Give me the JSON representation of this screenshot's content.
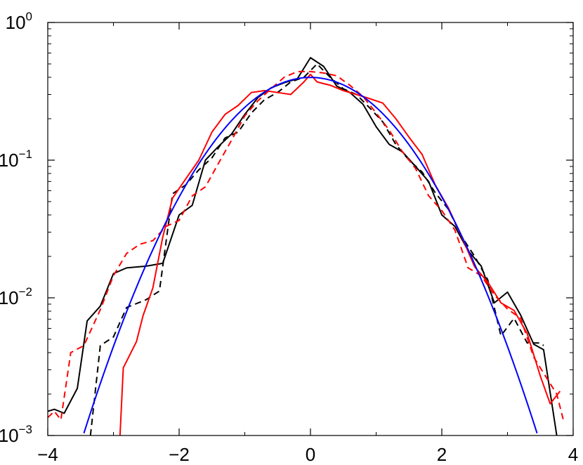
{
  "chart_data": {
    "type": "line",
    "title": "",
    "xlabel": "",
    "ylabel": "",
    "xlim": [
      -4,
      4
    ],
    "ylim": [
      0.001,
      1
    ],
    "yscale": "log",
    "grid": false,
    "x_ticks": [
      -4,
      -2,
      0,
      2,
      4
    ],
    "x_tick_labels": [
      "−4",
      "−2",
      "0",
      "2",
      "4"
    ],
    "y_ticks": [
      {
        "value": 1,
        "base": "10",
        "exp": "0"
      },
      {
        "value": 0.1,
        "base": "10",
        "exp": "−1"
      },
      {
        "value": 0.01,
        "base": "10",
        "exp": "−2"
      },
      {
        "value": 0.001,
        "base": "10",
        "exp": "−3"
      }
    ],
    "series": [
      {
        "color": "#000000",
        "dash": "solid",
        "points": [
          [
            -4.0,
            0.0015
          ],
          [
            -3.9,
            0.00155
          ],
          [
            -3.75,
            0.00145
          ],
          [
            -3.55,
            0.0022
          ],
          [
            -3.4,
            0.0068
          ],
          [
            -3.2,
            0.0087
          ],
          [
            -3.0,
            0.015
          ],
          [
            -2.8,
            0.0165
          ],
          [
            -2.5,
            0.017
          ],
          [
            -2.25,
            0.0178
          ],
          [
            -2.0,
            0.04
          ],
          [
            -1.8,
            0.047
          ],
          [
            -1.6,
            0.1
          ],
          [
            -1.4,
            0.126
          ],
          [
            -1.2,
            0.155
          ],
          [
            -1.0,
            0.215
          ],
          [
            -0.8,
            0.285
          ],
          [
            -0.6,
            0.335
          ],
          [
            -0.4,
            0.365
          ],
          [
            -0.2,
            0.39
          ],
          [
            0.0,
            0.555
          ],
          [
            0.2,
            0.48
          ],
          [
            0.4,
            0.345
          ],
          [
            0.6,
            0.31
          ],
          [
            0.8,
            0.255
          ],
          [
            1.0,
            0.175
          ],
          [
            1.2,
            0.13
          ],
          [
            1.4,
            0.115
          ],
          [
            1.6,
            0.09
          ],
          [
            1.8,
            0.07
          ],
          [
            2.0,
            0.04
          ],
          [
            2.2,
            0.033
          ],
          [
            2.4,
            0.022
          ],
          [
            2.6,
            0.017
          ],
          [
            2.8,
            0.0092
          ],
          [
            3.0,
            0.011
          ],
          [
            3.2,
            0.0075
          ],
          [
            3.4,
            0.0046
          ],
          [
            3.55,
            0.0042
          ],
          [
            3.75,
            0.001
          ]
        ]
      },
      {
        "color": "#000000",
        "dash": "dashed",
        "points": [
          [
            -3.35,
            0.001
          ],
          [
            -3.2,
            0.0045
          ],
          [
            -3.0,
            0.0052
          ],
          [
            -2.8,
            0.0085
          ],
          [
            -2.5,
            0.0097
          ],
          [
            -2.3,
            0.0112
          ],
          [
            -2.1,
            0.057
          ],
          [
            -1.9,
            0.066
          ],
          [
            -1.7,
            0.085
          ],
          [
            -1.5,
            0.104
          ],
          [
            -1.3,
            0.145
          ],
          [
            -1.1,
            0.16
          ],
          [
            -0.9,
            0.22
          ],
          [
            -0.7,
            0.275
          ],
          [
            -0.5,
            0.31
          ],
          [
            -0.3,
            0.37
          ],
          [
            -0.1,
            0.4
          ],
          [
            0.1,
            0.5
          ],
          [
            0.3,
            0.4
          ],
          [
            0.5,
            0.33
          ],
          [
            0.7,
            0.3
          ],
          [
            0.9,
            0.24
          ],
          [
            1.1,
            0.19
          ],
          [
            1.3,
            0.13
          ],
          [
            1.5,
            0.1
          ],
          [
            1.7,
            0.082
          ],
          [
            1.9,
            0.058
          ],
          [
            2.1,
            0.044
          ],
          [
            2.3,
            0.028
          ],
          [
            2.5,
            0.02
          ],
          [
            2.7,
            0.0135
          ],
          [
            2.9,
            0.0053
          ],
          [
            3.1,
            0.0071
          ],
          [
            3.3,
            0.0047
          ],
          [
            3.5,
            0.0047
          ],
          [
            3.55,
            0.0045
          ]
        ]
      },
      {
        "color": "#ff0000",
        "dash": "solid",
        "points": [
          [
            -2.9,
            0.001
          ],
          [
            -2.85,
            0.0031
          ],
          [
            -2.65,
            0.0048
          ],
          [
            -2.55,
            0.0074
          ],
          [
            -2.4,
            0.0118
          ],
          [
            -2.25,
            0.0275
          ],
          [
            -2.1,
            0.053
          ],
          [
            -1.9,
            0.073
          ],
          [
            -1.7,
            0.1
          ],
          [
            -1.5,
            0.16
          ],
          [
            -1.3,
            0.215
          ],
          [
            -1.1,
            0.25
          ],
          [
            -0.9,
            0.31
          ],
          [
            -0.7,
            0.32
          ],
          [
            -0.5,
            0.31
          ],
          [
            -0.3,
            0.3
          ],
          [
            -0.1,
            0.37
          ],
          [
            0.0,
            0.42
          ],
          [
            0.1,
            0.37
          ],
          [
            0.3,
            0.35
          ],
          [
            0.5,
            0.32
          ],
          [
            0.7,
            0.3
          ],
          [
            0.9,
            0.28
          ],
          [
            1.1,
            0.26
          ],
          [
            1.3,
            0.2
          ],
          [
            1.5,
            0.147
          ],
          [
            1.7,
            0.11
          ],
          [
            1.9,
            0.066
          ],
          [
            2.1,
            0.045
          ],
          [
            2.3,
            0.028
          ],
          [
            2.5,
            0.0168
          ],
          [
            2.7,
            0.013
          ],
          [
            2.9,
            0.0092
          ],
          [
            3.1,
            0.0081
          ],
          [
            3.3,
            0.0055
          ],
          [
            3.5,
            0.0027
          ],
          [
            3.65,
            0.0017
          ],
          [
            3.8,
            0.0021
          ]
        ]
      },
      {
        "color": "#ff0000",
        "dash": "dashed",
        "points": [
          [
            -4.0,
            0.00135
          ],
          [
            -3.9,
            0.0015
          ],
          [
            -3.8,
            0.0013
          ],
          [
            -3.65,
            0.004
          ],
          [
            -3.45,
            0.0045
          ],
          [
            -3.2,
            0.0082
          ],
          [
            -3.0,
            0.0145
          ],
          [
            -2.8,
            0.021
          ],
          [
            -2.6,
            0.0245
          ],
          [
            -2.4,
            0.026
          ],
          [
            -2.2,
            0.033
          ],
          [
            -2.0,
            0.0365
          ],
          [
            -1.8,
            0.055
          ],
          [
            -1.6,
            0.064
          ],
          [
            -1.4,
            0.095
          ],
          [
            -1.2,
            0.14
          ],
          [
            -1.0,
            0.21
          ],
          [
            -0.8,
            0.27
          ],
          [
            -0.6,
            0.33
          ],
          [
            -0.4,
            0.4
          ],
          [
            -0.2,
            0.44
          ],
          [
            0.0,
            0.44
          ],
          [
            0.2,
            0.43
          ],
          [
            0.4,
            0.41
          ],
          [
            0.6,
            0.35
          ],
          [
            0.8,
            0.29
          ],
          [
            1.0,
            0.22
          ],
          [
            1.2,
            0.165
          ],
          [
            1.4,
            0.115
          ],
          [
            1.6,
            0.087
          ],
          [
            1.8,
            0.055
          ],
          [
            2.0,
            0.043
          ],
          [
            2.2,
            0.031
          ],
          [
            2.4,
            0.0165
          ],
          [
            2.6,
            0.0145
          ],
          [
            2.8,
            0.0105
          ],
          [
            3.0,
            0.0083
          ],
          [
            3.2,
            0.0071
          ],
          [
            3.4,
            0.0037
          ],
          [
            3.6,
            0.0026
          ],
          [
            3.75,
            0.002
          ],
          [
            3.85,
            0.0013
          ]
        ]
      },
      {
        "color": "#0000ff",
        "dash": "solid",
        "function": "gaussian",
        "mean": 0,
        "std": 1,
        "x_range": [
          -3.45,
          3.45
        ]
      }
    ]
  }
}
